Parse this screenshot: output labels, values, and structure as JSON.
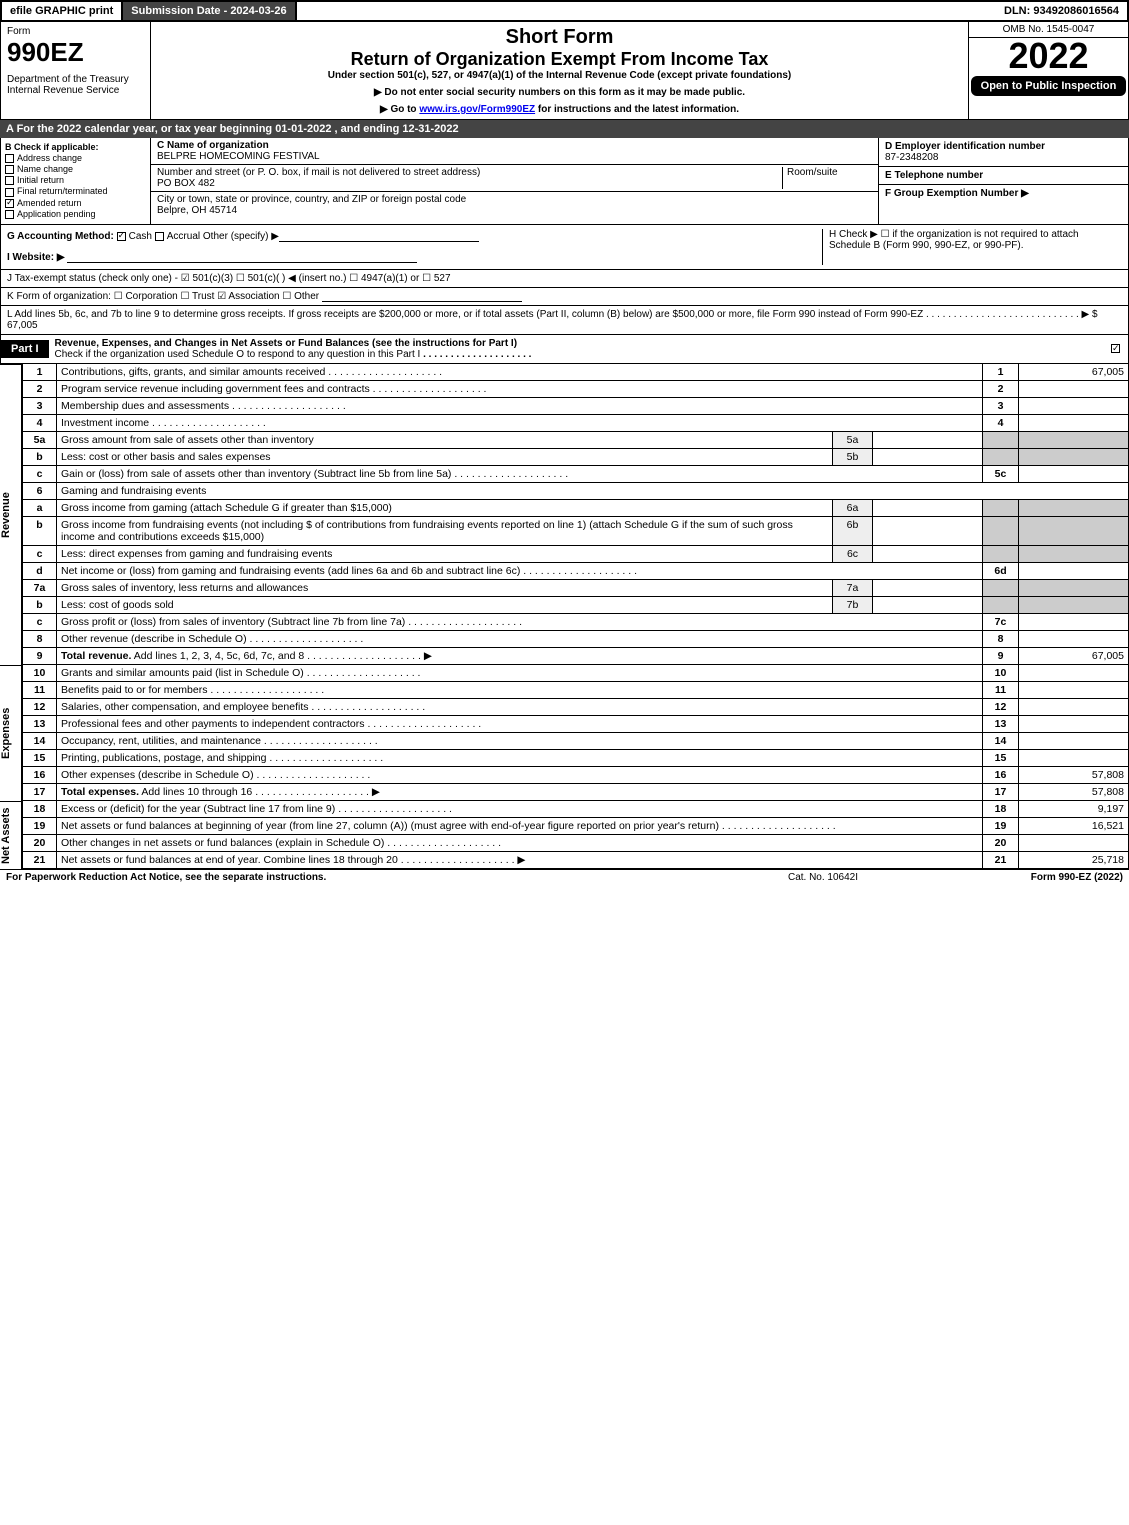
{
  "topbar": {
    "efile": "efile GRAPHIC print",
    "sub": "Submission Date - 2024-03-26",
    "dln": "DLN: 93492086016564"
  },
  "header": {
    "form": "Form",
    "formnum": "990EZ",
    "dept": "Department of the Treasury\nInternal Revenue Service",
    "short": "Short Form",
    "return": "Return of Organization Exempt From Income Tax",
    "under": "Under section 501(c), 527, or 4947(a)(1) of the Internal Revenue Code (except private foundations)",
    "note1": "▶ Do not enter social security numbers on this form as it may be made public.",
    "note2": "▶ Go to www.irs.gov/Form990EZ for instructions and the latest information.",
    "omb": "OMB No. 1545-0047",
    "year": "2022",
    "open": "Open to Public Inspection"
  },
  "A": "A  For the 2022 calendar year, or tax year beginning 01-01-2022 , and ending 12-31-2022",
  "B": {
    "hdr": "B  Check if applicable:",
    "items": [
      {
        "l": "Address change",
        "ck": false
      },
      {
        "l": "Name change",
        "ck": false
      },
      {
        "l": "Initial return",
        "ck": false
      },
      {
        "l": "Final return/terminated",
        "ck": false
      },
      {
        "l": "Amended return",
        "ck": true
      },
      {
        "l": "Application pending",
        "ck": false
      }
    ]
  },
  "C": {
    "nameLab": "C Name of organization",
    "name": "BELPRE HOMECOMING FESTIVAL",
    "streetLab": "Number and street (or P. O. box, if mail is not delivered to street address)",
    "room": "Room/suite",
    "street": "PO BOX 482",
    "cityLab": "City or town, state or province, country, and ZIP or foreign postal code",
    "city": "Belpre, OH  45714"
  },
  "D": {
    "lab": "D Employer identification number",
    "val": "87-2348208"
  },
  "E": {
    "lab": "E Telephone number",
    "val": ""
  },
  "F": {
    "lab": "F Group Exemption Number  ▶",
    "val": ""
  },
  "G": {
    "lab": "G Accounting Method:",
    "cash": "Cash",
    "accrual": "Accrual",
    "other": "Other (specify) ▶"
  },
  "H": {
    "txt": "H  Check ▶  ☐  if the organization is not required to attach Schedule B (Form 990, 990-EZ, or 990-PF)."
  },
  "I": {
    "lab": "I Website: ▶"
  },
  "J": {
    "txt": "J Tax-exempt status (check only one) -  ☑ 501(c)(3)  ☐ 501(c)(  ) ◀ (insert no.)  ☐ 4947(a)(1) or  ☐ 527"
  },
  "K": {
    "txt": "K Form of organization:   ☐ Corporation   ☐ Trust   ☑ Association   ☐ Other"
  },
  "L": {
    "txt": "L Add lines 5b, 6c, and 7b to line 9 to determine gross receipts. If gross receipts are $200,000 or more, or if total assets (Part II, column (B) below) are $500,000 or more, file Form 990 instead of Form 990-EZ  .  .  .  .  .  .  .  .  .  .  .  .  .  .  .  .  .  .  .  .  .  .  .  .  .  .  .  .  ▶ $",
    "amt": "67,005"
  },
  "part1": {
    "lab": "Part I",
    "txt": "Revenue, Expenses, and Changes in Net Assets or Fund Balances (see the instructions for Part I)",
    "sub": "Check if the organization used Schedule O to respond to any question in this Part I",
    "ck": true
  },
  "sections": {
    "rev": "Revenue",
    "exp": "Expenses",
    "net": "Net Assets"
  },
  "lines": [
    {
      "n": "1",
      "d": "Contributions, gifts, grants, and similar amounts received",
      "r": "1",
      "a": "67,005"
    },
    {
      "n": "2",
      "d": "Program service revenue including government fees and contracts",
      "r": "2",
      "a": ""
    },
    {
      "n": "3",
      "d": "Membership dues and assessments",
      "r": "3",
      "a": ""
    },
    {
      "n": "4",
      "d": "Investment income",
      "r": "4",
      "a": ""
    },
    {
      "n": "5a",
      "d": "Gross amount from sale of assets other than inventory",
      "sub": "5a"
    },
    {
      "n": "b",
      "d": "Less: cost or other basis and sales expenses",
      "sub": "5b"
    },
    {
      "n": "c",
      "d": "Gain or (loss) from sale of assets other than inventory (Subtract line 5b from line 5a)",
      "r": "5c",
      "a": ""
    },
    {
      "n": "6",
      "d": "Gaming and fundraising events"
    },
    {
      "n": "a",
      "d": "Gross income from gaming (attach Schedule G if greater than $15,000)",
      "sub": "6a"
    },
    {
      "n": "b",
      "d": "Gross income from fundraising events (not including $                    of contributions from fundraising events reported on line 1) (attach Schedule G if the sum of such gross income and contributions exceeds $15,000)",
      "sub": "6b"
    },
    {
      "n": "c",
      "d": "Less: direct expenses from gaming and fundraising events",
      "sub": "6c"
    },
    {
      "n": "d",
      "d": "Net income or (loss) from gaming and fundraising events (add lines 6a and 6b and subtract line 6c)",
      "r": "6d",
      "a": ""
    },
    {
      "n": "7a",
      "d": "Gross sales of inventory, less returns and allowances",
      "sub": "7a"
    },
    {
      "n": "b",
      "d": "Less: cost of goods sold",
      "sub": "7b"
    },
    {
      "n": "c",
      "d": "Gross profit or (loss) from sales of inventory (Subtract line 7b from line 7a)",
      "r": "7c",
      "a": ""
    },
    {
      "n": "8",
      "d": "Other revenue (describe in Schedule O)",
      "r": "8",
      "a": ""
    },
    {
      "n": "9",
      "d": "Total revenue. Add lines 1, 2, 3, 4, 5c, 6d, 7c, and 8",
      "r": "9",
      "a": "67,005",
      "bold": true,
      "arrow": true
    }
  ],
  "exp": [
    {
      "n": "10",
      "d": "Grants and similar amounts paid (list in Schedule O)",
      "r": "10",
      "a": ""
    },
    {
      "n": "11",
      "d": "Benefits paid to or for members",
      "r": "11",
      "a": ""
    },
    {
      "n": "12",
      "d": "Salaries, other compensation, and employee benefits",
      "r": "12",
      "a": ""
    },
    {
      "n": "13",
      "d": "Professional fees and other payments to independent contractors",
      "r": "13",
      "a": ""
    },
    {
      "n": "14",
      "d": "Occupancy, rent, utilities, and maintenance",
      "r": "14",
      "a": ""
    },
    {
      "n": "15",
      "d": "Printing, publications, postage, and shipping",
      "r": "15",
      "a": ""
    },
    {
      "n": "16",
      "d": "Other expenses (describe in Schedule O)",
      "r": "16",
      "a": "57,808"
    },
    {
      "n": "17",
      "d": "Total expenses. Add lines 10 through 16",
      "r": "17",
      "a": "57,808",
      "bold": true,
      "arrow": true
    }
  ],
  "net": [
    {
      "n": "18",
      "d": "Excess or (deficit) for the year (Subtract line 17 from line 9)",
      "r": "18",
      "a": "9,197"
    },
    {
      "n": "19",
      "d": "Net assets or fund balances at beginning of year (from line 27, column (A)) (must agree with end-of-year figure reported on prior year's return)",
      "r": "19",
      "a": "16,521"
    },
    {
      "n": "20",
      "d": "Other changes in net assets or fund balances (explain in Schedule O)",
      "r": "20",
      "a": ""
    },
    {
      "n": "21",
      "d": "Net assets or fund balances at end of year. Combine lines 18 through 20",
      "r": "21",
      "a": "25,718",
      "arrow": true
    }
  ],
  "footer": {
    "l": "For Paperwork Reduction Act Notice, see the separate instructions.",
    "c": "Cat. No. 10642I",
    "r": "Form 990-EZ (2022)"
  }
}
